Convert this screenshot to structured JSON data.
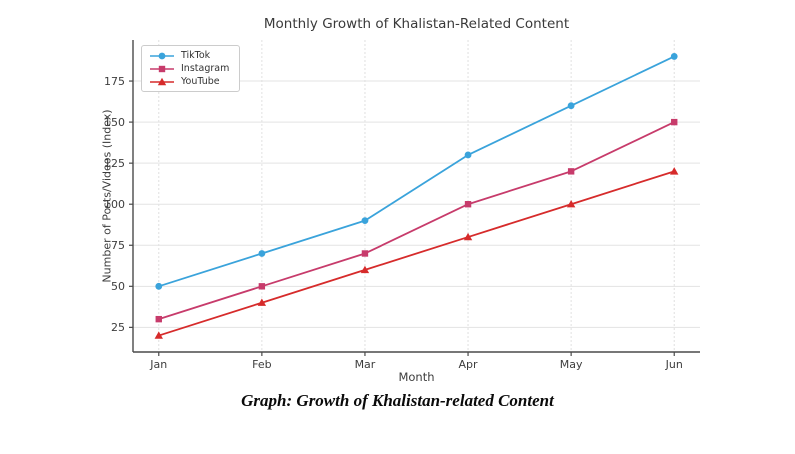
{
  "figure": {
    "background": "#ffffff"
  },
  "chart_data": {
    "type": "line",
    "title": "Monthly Growth of Khalistan-Related Content",
    "xlabel": "Month",
    "ylabel": "Number of Posts/Videos (Index)",
    "categories": [
      "Jan",
      "Feb",
      "Mar",
      "Apr",
      "May",
      "Jun"
    ],
    "series": [
      {
        "name": "TikTok",
        "values": [
          50,
          70,
          90,
          130,
          160,
          190
        ],
        "color": "#3AA3DB",
        "marker": "circle"
      },
      {
        "name": "Instagram",
        "values": [
          30,
          50,
          70,
          100,
          120,
          150
        ],
        "color": "#C73B6B",
        "marker": "square"
      },
      {
        "name": "YouTube",
        "values": [
          20,
          40,
          60,
          80,
          100,
          120
        ],
        "color": "#D62B2B",
        "marker": "triangle"
      }
    ],
    "yticks": [
      25,
      50,
      75,
      100,
      125,
      150,
      175
    ],
    "ylim": [
      10,
      200
    ],
    "grid": true,
    "legend_position": "upper left",
    "colors": {
      "grid_h": "#e3e3e3",
      "grid_v": "#e0e0e0",
      "spine": "#4a4a4a",
      "tick_label": "#3d3d3d"
    }
  },
  "caption": "Graph: Growth of Khalistan-related Content"
}
